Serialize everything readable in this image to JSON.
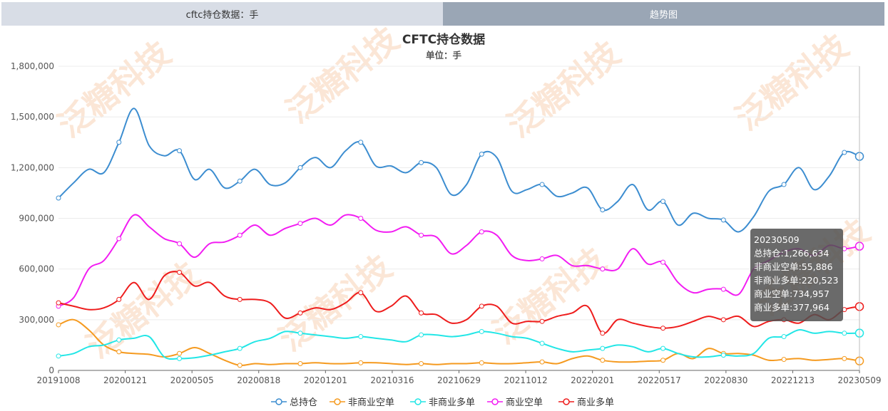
{
  "tabs": [
    {
      "label": "cftc持仓数据：手"
    },
    {
      "label": "趋势图"
    }
  ],
  "watermark": "泛糖科技",
  "tooltip": {
    "date": "20230509",
    "lines": [
      "总持仓:1,266,634",
      "非商业空单:55,886",
      "非商业多单:220,523",
      "商业空单:734,957",
      "商业多单:377,964"
    ]
  },
  "chart_data": {
    "type": "line",
    "title": "CFTC持仓数据",
    "subtitle": "单位：手",
    "ylim": [
      0,
      1800000
    ],
    "yticks": [
      "0",
      "300,000",
      "600,000",
      "900,000",
      "1,200,000",
      "1,500,000",
      "1,800,000"
    ],
    "x_tick_labels": [
      "20191008",
      "20200121",
      "20200505",
      "20200818",
      "20201201",
      "20210316",
      "20210629",
      "20211012",
      "20220201",
      "20220517",
      "20220830",
      "20221213",
      "20230509"
    ],
    "grid": true,
    "legend_position": "bottom",
    "series": [
      {
        "name": "总持仓",
        "color": "#3c8dd0",
        "values": [
          1020000,
          1110000,
          1190000,
          1170000,
          1350000,
          1550000,
          1330000,
          1270000,
          1300000,
          1130000,
          1190000,
          1080000,
          1120000,
          1190000,
          1100000,
          1110000,
          1200000,
          1260000,
          1200000,
          1300000,
          1350000,
          1210000,
          1210000,
          1170000,
          1230000,
          1200000,
          1040000,
          1100000,
          1280000,
          1260000,
          1060000,
          1070000,
          1100000,
          1030000,
          1050000,
          1080000,
          950000,
          1000000,
          1100000,
          950000,
          1000000,
          860000,
          930000,
          900000,
          890000,
          820000,
          910000,
          1060000,
          1100000,
          1200000,
          1070000,
          1150000,
          1290000,
          1266634
        ]
      },
      {
        "name": "非商业空单",
        "color": "#f59a1f",
        "values": [
          270000,
          300000,
          240000,
          150000,
          110000,
          100000,
          95000,
          80000,
          100000,
          135000,
          100000,
          60000,
          30000,
          40000,
          35000,
          40000,
          40000,
          45000,
          40000,
          40000,
          45000,
          45000,
          40000,
          35000,
          40000,
          35000,
          40000,
          40000,
          45000,
          40000,
          40000,
          45000,
          50000,
          40000,
          70000,
          85000,
          60000,
          50000,
          50000,
          55000,
          60000,
          100000,
          70000,
          130000,
          100000,
          100000,
          90000,
          60000,
          65000,
          70000,
          60000,
          65000,
          70000,
          55886
        ]
      },
      {
        "name": "非商业多单",
        "color": "#22e6e6",
        "values": [
          85000,
          100000,
          140000,
          150000,
          180000,
          190000,
          200000,
          80000,
          70000,
          75000,
          90000,
          110000,
          130000,
          170000,
          190000,
          230000,
          220000,
          210000,
          200000,
          190000,
          200000,
          190000,
          180000,
          170000,
          210000,
          210000,
          200000,
          210000,
          230000,
          220000,
          200000,
          190000,
          160000,
          130000,
          110000,
          120000,
          130000,
          150000,
          140000,
          110000,
          130000,
          100000,
          80000,
          80000,
          90000,
          85000,
          100000,
          190000,
          200000,
          240000,
          220000,
          230000,
          220000,
          220523
        ]
      },
      {
        "name": "商业空单",
        "color": "#f21cf2",
        "values": [
          380000,
          430000,
          600000,
          650000,
          780000,
          920000,
          850000,
          780000,
          750000,
          670000,
          750000,
          760000,
          800000,
          860000,
          800000,
          840000,
          870000,
          900000,
          860000,
          920000,
          900000,
          830000,
          820000,
          850000,
          800000,
          790000,
          690000,
          740000,
          820000,
          800000,
          680000,
          650000,
          660000,
          680000,
          620000,
          620000,
          600000,
          600000,
          720000,
          630000,
          640000,
          520000,
          460000,
          480000,
          480000,
          450000,
          600000,
          650000,
          700000,
          720000,
          680000,
          740000,
          720000,
          734957
        ]
      },
      {
        "name": "商业多单",
        "color": "#ee1c1c",
        "values": [
          400000,
          380000,
          360000,
          370000,
          420000,
          520000,
          420000,
          560000,
          580000,
          500000,
          520000,
          440000,
          420000,
          420000,
          400000,
          310000,
          340000,
          370000,
          360000,
          400000,
          460000,
          350000,
          380000,
          440000,
          340000,
          330000,
          280000,
          300000,
          380000,
          380000,
          280000,
          290000,
          290000,
          320000,
          340000,
          380000,
          220000,
          300000,
          280000,
          260000,
          250000,
          260000,
          290000,
          320000,
          300000,
          320000,
          260000,
          290000,
          300000,
          280000,
          330000,
          300000,
          360000,
          377964
        ]
      }
    ]
  }
}
